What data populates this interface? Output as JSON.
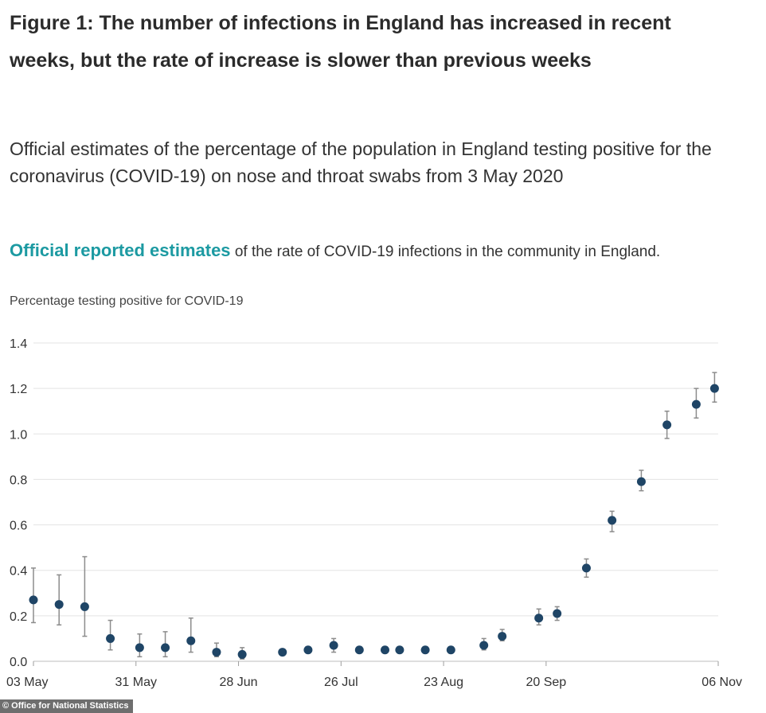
{
  "title": "Figure 1: The number of infections in England has increased in recent weeks, but the rate of increase is slower than previous weeks",
  "subtitle": "Official estimates of the percentage of the population in England testing positive for the coronavirus (COVID-19) on nose and throat swabs from 3 May 2020",
  "reported": {
    "highlight": "Official reported estimates",
    "rest": " of the rate of COVID-19 infections in the community in England."
  },
  "credit": "© Office for National Statistics",
  "colors": {
    "marker": "#1f4566",
    "error_bar": "#8c8c8c",
    "grid": "#e3e3e3",
    "highlight": "#1c9aa2"
  },
  "chart_data": {
    "type": "scatter",
    "ylabel": "Percentage testing positive for COVID-19",
    "xlabel": "",
    "ylim": [
      0,
      1.4
    ],
    "yticks": [
      0.0,
      0.2,
      0.4,
      0.6,
      0.8,
      1.0,
      1.2,
      1.4
    ],
    "ytick_labels": [
      "0.0",
      "0.2",
      "0.4",
      "0.6",
      "0.8",
      "1.0",
      "1.2",
      "1.4"
    ],
    "xlim": [
      "2020-05-03",
      "2020-11-06"
    ],
    "xticks": [
      "2020-05-03",
      "2020-05-31",
      "2020-06-28",
      "2020-07-26",
      "2020-08-23",
      "2020-09-20",
      "2020-11-06"
    ],
    "xtick_labels": [
      "03 May",
      "31 May",
      "28 Jun",
      "26 Jul",
      "23 Aug",
      "20 Sep",
      "06 Nov"
    ],
    "grid": true,
    "series": [
      {
        "points": [
          {
            "x": "2020-05-03",
            "y": 0.27,
            "lower": 0.17,
            "upper": 0.41
          },
          {
            "x": "2020-05-10",
            "y": 0.25,
            "lower": 0.16,
            "upper": 0.38
          },
          {
            "x": "2020-05-17",
            "y": 0.24,
            "lower": 0.11,
            "upper": 0.46
          },
          {
            "x": "2020-05-24",
            "y": 0.1,
            "lower": 0.05,
            "upper": 0.18
          },
          {
            "x": "2020-06-01",
            "y": 0.06,
            "lower": 0.02,
            "upper": 0.12
          },
          {
            "x": "2020-06-08",
            "y": 0.06,
            "lower": 0.02,
            "upper": 0.13
          },
          {
            "x": "2020-06-15",
            "y": 0.09,
            "lower": 0.04,
            "upper": 0.19
          },
          {
            "x": "2020-06-22",
            "y": 0.04,
            "lower": 0.02,
            "upper": 0.08
          },
          {
            "x": "2020-06-29",
            "y": 0.03,
            "lower": 0.01,
            "upper": 0.06
          },
          {
            "x": "2020-07-10",
            "y": 0.04,
            "lower": 0.03,
            "upper": 0.05
          },
          {
            "x": "2020-07-17",
            "y": 0.05,
            "lower": 0.04,
            "upper": 0.06
          },
          {
            "x": "2020-07-24",
            "y": 0.07,
            "lower": 0.04,
            "upper": 0.1
          },
          {
            "x": "2020-07-31",
            "y": 0.05,
            "lower": 0.04,
            "upper": 0.06
          },
          {
            "x": "2020-08-07",
            "y": 0.05,
            "lower": 0.04,
            "upper": 0.06
          },
          {
            "x": "2020-08-11",
            "y": 0.05,
            "lower": 0.04,
            "upper": 0.06
          },
          {
            "x": "2020-08-18",
            "y": 0.05,
            "lower": 0.04,
            "upper": 0.06
          },
          {
            "x": "2020-08-25",
            "y": 0.05,
            "lower": 0.04,
            "upper": 0.06
          },
          {
            "x": "2020-09-03",
            "y": 0.07,
            "lower": 0.05,
            "upper": 0.1
          },
          {
            "x": "2020-09-08",
            "y": 0.11,
            "lower": 0.09,
            "upper": 0.14
          },
          {
            "x": "2020-09-18",
            "y": 0.19,
            "lower": 0.16,
            "upper": 0.23
          },
          {
            "x": "2020-09-23",
            "y": 0.21,
            "lower": 0.18,
            "upper": 0.24
          },
          {
            "x": "2020-10-01",
            "y": 0.41,
            "lower": 0.37,
            "upper": 0.45
          },
          {
            "x": "2020-10-08",
            "y": 0.62,
            "lower": 0.57,
            "upper": 0.66
          },
          {
            "x": "2020-10-16",
            "y": 0.79,
            "lower": 0.75,
            "upper": 0.84
          },
          {
            "x": "2020-10-23",
            "y": 1.04,
            "lower": 0.98,
            "upper": 1.1
          },
          {
            "x": "2020-10-31",
            "y": 1.13,
            "lower": 1.07,
            "upper": 1.2
          },
          {
            "x": "2020-11-05",
            "y": 1.2,
            "lower": 1.14,
            "upper": 1.27
          }
        ]
      }
    ]
  }
}
